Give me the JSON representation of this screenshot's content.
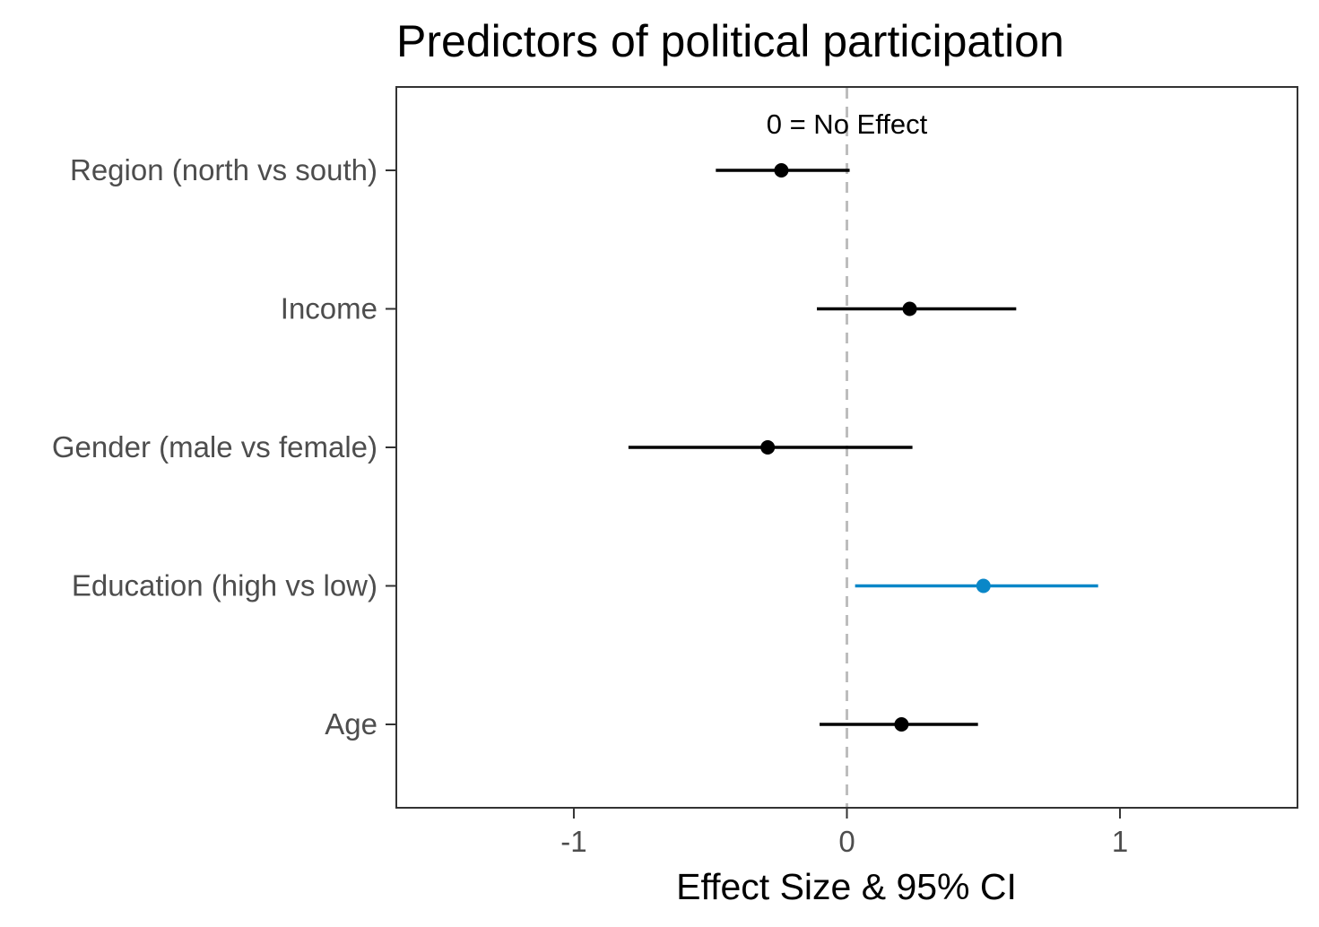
{
  "chart_data": {
    "type": "scatter",
    "subtype": "coefficient-plot",
    "title": "Predictors of political participation",
    "xlabel": "Effect Size & 95% CI",
    "ylabel": "",
    "xlim": [
      -1.65,
      1.65
    ],
    "x_ticks": [
      -1,
      0,
      1
    ],
    "x_tick_labels": [
      "-1",
      "0",
      "1"
    ],
    "reference_line": {
      "x": 0,
      "style": "dashed",
      "color": "#bdbdbd"
    },
    "annotation": "0 = No Effect",
    "grid": false,
    "legend": "none",
    "categories": [
      "Region (north vs south)",
      "Income",
      "Gender (male vs female)",
      "Education (high vs low)",
      "Age"
    ],
    "estimates": [
      -0.24,
      0.23,
      -0.29,
      0.5,
      0.2
    ],
    "ci_lower": [
      -0.48,
      -0.11,
      -0.8,
      0.03,
      -0.1
    ],
    "ci_upper": [
      0.01,
      0.62,
      0.24,
      0.92,
      0.48
    ],
    "colors": [
      "#000000",
      "#000000",
      "#000000",
      "#0a87c8",
      "#000000"
    ]
  }
}
